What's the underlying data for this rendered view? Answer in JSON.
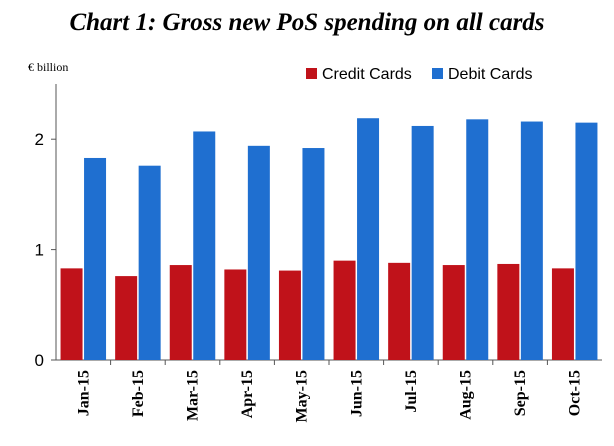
{
  "chart_data": {
    "type": "bar",
    "title": "Chart 1: Gross new PoS spending on all cards",
    "ylabel": "€ billion",
    "xlabel": "",
    "ylim": [
      0,
      2.5
    ],
    "yticks": [
      0,
      1,
      2
    ],
    "grid": false,
    "legend_position": "top-right",
    "categories": [
      "Jan-15",
      "Feb-15",
      "Mar-15",
      "Apr-15",
      "May-15",
      "Jun-15",
      "Jul-15",
      "Aug-15",
      "Sep-15",
      "Oct-15"
    ],
    "series": [
      {
        "name": "Credit Cards",
        "color": "#c0121a",
        "values": [
          0.83,
          0.76,
          0.86,
          0.82,
          0.81,
          0.9,
          0.88,
          0.86,
          0.87,
          0.83
        ]
      },
      {
        "name": "Debit Cards",
        "color": "#1f6fd0",
        "values": [
          1.83,
          1.76,
          2.07,
          1.94,
          1.92,
          2.19,
          2.12,
          2.18,
          2.16,
          2.15
        ]
      }
    ]
  }
}
